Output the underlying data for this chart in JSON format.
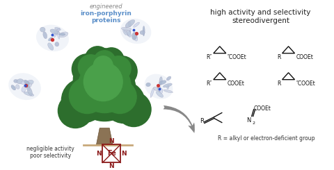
{
  "bg_color": "#ffffff",
  "top_label_line1": "engineered",
  "top_label_line2": "iron-porphyrin",
  "top_label_line3": "proteins",
  "top_label_color": "#5b8fc9",
  "right_title_line1": "high activity and selectivity",
  "right_title_line2": "stereodivergent",
  "bottom_left_line1": "negligible activity",
  "bottom_left_line2": "poor selectivity",
  "bottom_right": "R = alkyl or electron-deficient group",
  "arrow_color": "#888888",
  "fe_color": "#8b1a1a",
  "n_color": "#8b1a1a",
  "tree_trunk_color": "#8b7355",
  "tree_green_dark": "#2d6e2d",
  "tree_green_mid": "#3a8a3a",
  "tree_green_light": "#4aa04a",
  "text_color": "#333333",
  "chem_color": "#111111"
}
